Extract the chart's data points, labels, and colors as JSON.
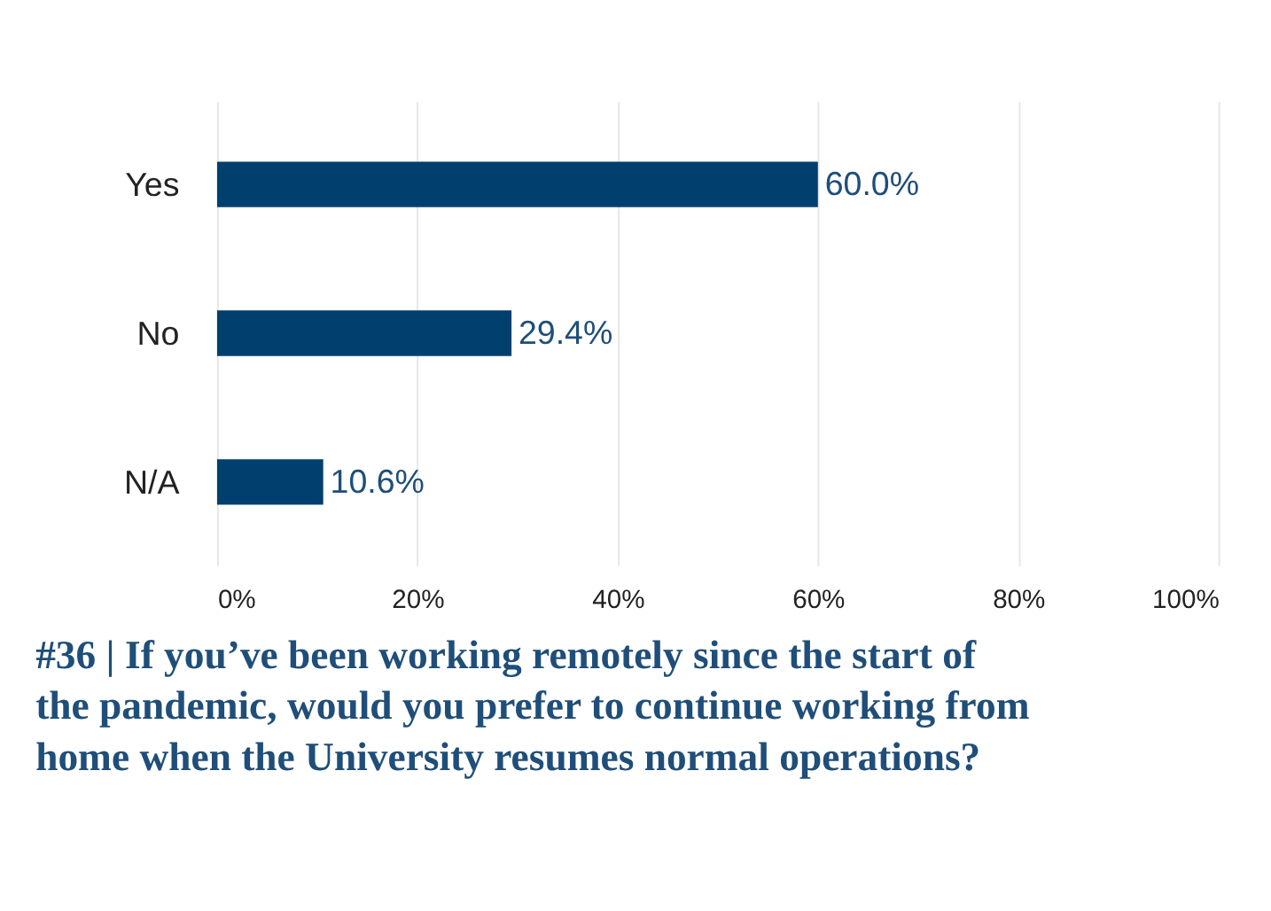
{
  "chart_data": {
    "type": "bar",
    "orientation": "horizontal",
    "title": "#36 | If you’ve been working remotely since the start of the pandemic, would you prefer to continue working from home when the University resumes normal operations?",
    "categories": [
      "Yes",
      "No",
      "N/A"
    ],
    "values": [
      60.0,
      29.4,
      10.6
    ],
    "value_labels": [
      "60.0%",
      "29.4%",
      "10.6%"
    ],
    "color": "#003f6e",
    "xlim": [
      0,
      100
    ],
    "xticks": [
      {
        "value": 0,
        "label": "0%"
      },
      {
        "value": 20,
        "label": "20%"
      },
      {
        "value": 40,
        "label": "40%"
      },
      {
        "value": 60,
        "label": "60%"
      },
      {
        "value": 80,
        "label": "80%"
      },
      {
        "value": 100,
        "label": "100%"
      }
    ],
    "grid": "x"
  }
}
